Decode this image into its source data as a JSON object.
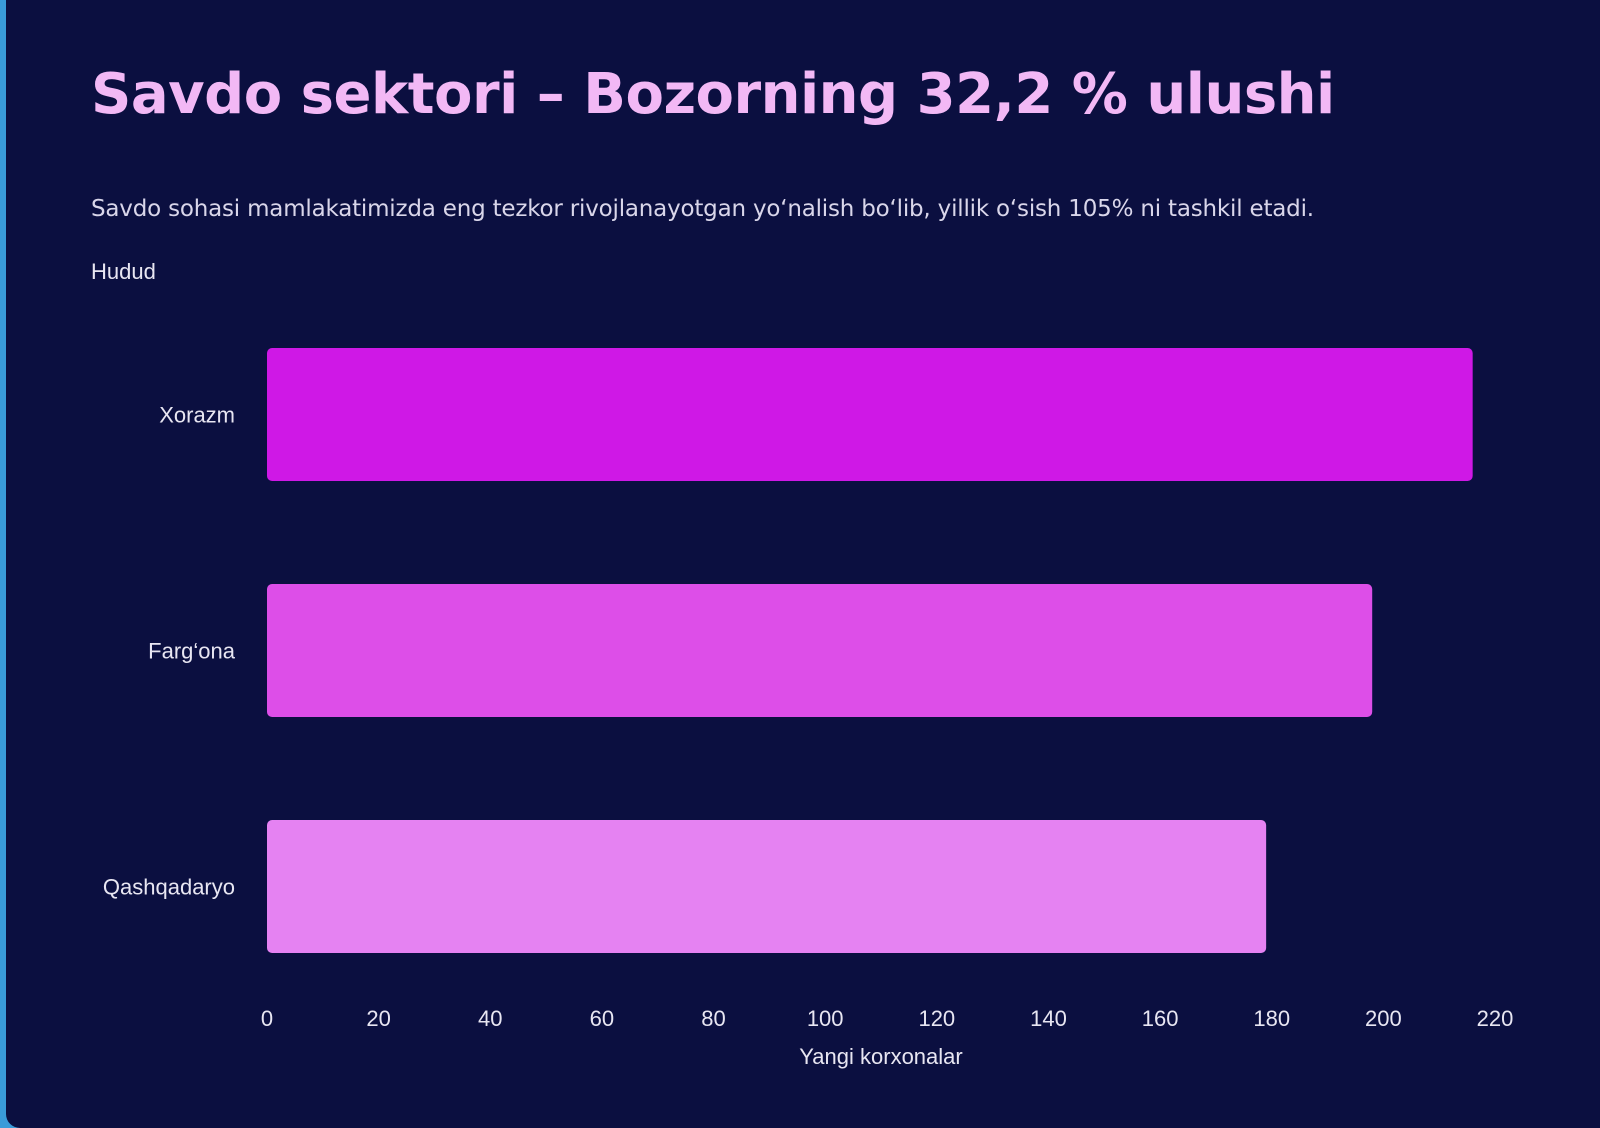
{
  "title": "Savdo sektori – Bozorning 32,2 % ulushi",
  "subtitle": "Savdo sohasi mamlakatimizda eng tezkor rivojlanayotgan yo‘nalish bo‘lib, yillik o‘sish 105% ni tashkil etadi.",
  "colors": {
    "background": "#0b0f40",
    "frame": "#3a9bd9",
    "title": "#f2b8f5",
    "bars": [
      "#cf18e6",
      "#dd4ee8",
      "#e582f2"
    ]
  },
  "chart_data": {
    "type": "bar",
    "orientation": "horizontal",
    "ylabel": "Hudud",
    "xlabel": "Yangi korxonalar",
    "categories": [
      "Xorazm",
      "Farg‘ona",
      "Qashqadaryo"
    ],
    "values": [
      216,
      198,
      179
    ],
    "xlim": [
      0,
      220
    ],
    "ticks": [
      "0",
      "20",
      "40",
      "60",
      "80",
      "100",
      "120",
      "140",
      "160",
      "180",
      "200",
      "220"
    ],
    "grid": false,
    "legend": "none"
  }
}
